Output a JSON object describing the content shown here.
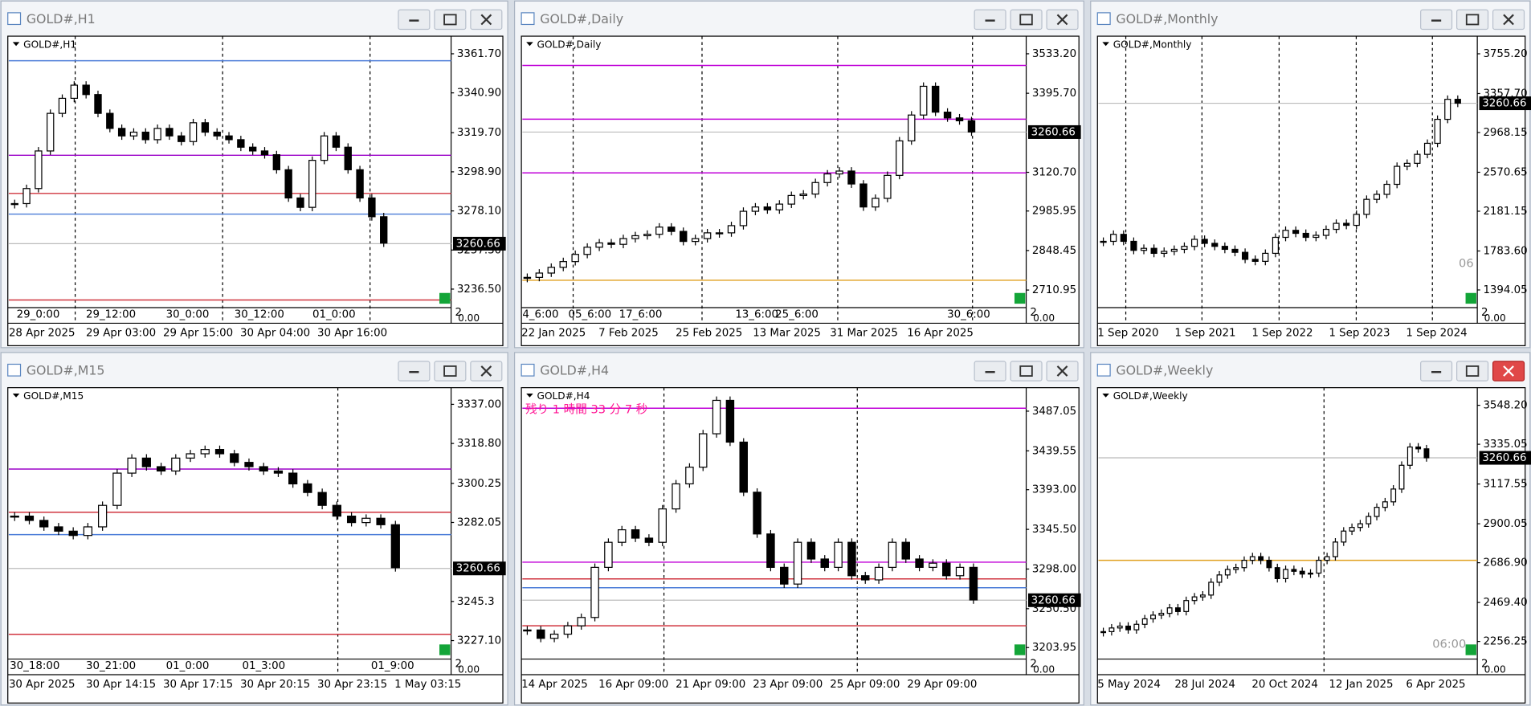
{
  "windows": [
    {
      "title": "GOLD#,H1",
      "active": false
    },
    {
      "title": "GOLD#,Daily",
      "active": false
    },
    {
      "title": "GOLD#,Monthly",
      "active": false
    },
    {
      "title": "GOLD#,M15",
      "active": false
    },
    {
      "title": "GOLD#,H4",
      "active": false
    },
    {
      "title": "GOLD#,Weekly",
      "active": true
    }
  ],
  "chart_data": [
    {
      "type": "candlestick",
      "title": "GOLD#,H1",
      "ylim": [
        3227.7,
        3369.5
      ],
      "yticks": [
        {
          "value": 3361.7,
          "label": "3361.70"
        },
        {
          "value": 3340.9,
          "label": "3340.90"
        },
        {
          "value": 3319.7,
          "label": "3319.70"
        },
        {
          "value": 3298.9,
          "label": "3298.90"
        },
        {
          "value": 3278.1,
          "label": "3278.10"
        },
        {
          "value": 3257.3,
          "label": "3257.30"
        },
        {
          "value": 3236.5,
          "label": "3236.50"
        }
      ],
      "price": 3260.66,
      "levels": [
        {
          "value": 3358,
          "color": "#4a7bd8"
        },
        {
          "value": 3307.7,
          "color": "#9b00c8"
        },
        {
          "value": 3287.4,
          "color": "#d0343f"
        },
        {
          "value": 3276.4,
          "color": "#4a7bd8"
        },
        {
          "value": 3230.7,
          "color": "#d0343f"
        }
      ],
      "values": [
        3282,
        3290,
        3310,
        3330,
        3338,
        3345,
        3340,
        3330,
        3322,
        3318,
        3320,
        3316,
        3322,
        3318,
        3315,
        3325,
        3320,
        3318,
        3316,
        3312,
        3310,
        3308,
        3300,
        3285,
        3280,
        3305,
        3318,
        3312,
        3300,
        3285,
        3275,
        3261
      ],
      "separator_labels": [
        "29_0:00",
        "29_12:00",
        "30_0:00",
        "30_12:00",
        "01_0:00"
      ],
      "x_labels": [
        "28 Apr 2025",
        "29 Apr 03:00",
        "29 Apr 15:00",
        "30 Apr 04:00",
        "30 Apr 16:00"
      ],
      "sub_labels": [
        "2",
        "0.00"
      ]
    },
    {
      "type": "candlestick",
      "title": "GOLD#,Daily",
      "ylim": [
        2656.6,
        3584.2
      ],
      "yticks": [
        {
          "value": 3533.2,
          "label": "3533.20"
        },
        {
          "value": 3395.7,
          "label": "3395.70"
        },
        {
          "value": 3120.7,
          "label": "3120.70"
        },
        2985.95,
        2848.45,
        2710.95
      ],
      "price": 3260.66,
      "levels": [
        {
          "value": 3492.4,
          "color": "#c000d8"
        },
        {
          "value": 3305.5,
          "color": "#c000d8"
        },
        {
          "value": 3118.6,
          "color": "#c000d8"
        },
        {
          "value": 2745,
          "color": "#e0a020"
        }
      ],
      "values": [
        2755,
        2770,
        2790,
        2810,
        2835,
        2860,
        2875,
        2870,
        2890,
        2900,
        2905,
        2930,
        2915,
        2880,
        2890,
        2910,
        2910,
        2935,
        2985,
        3000,
        2990,
        3010,
        3040,
        3045,
        3085,
        3115,
        3125,
        3080,
        3000,
        3030,
        3110,
        3230,
        3320,
        3420,
        3330,
        3310,
        3300,
        3261
      ],
      "separator_labels": [
        "4_6:00",
        "05_6:00",
        "17_6:00",
        "13_6:00",
        "25_6:00",
        "30_6:00"
      ],
      "x_labels": [
        "22 Jan 2025",
        "7 Feb 2025",
        "25 Feb 2025",
        "13 Mar 2025",
        "31 Mar 2025",
        "16 Apr 2025"
      ],
      "sub_labels": [
        "2",
        "0.00"
      ]
    },
    {
      "type": "candlestick",
      "title": "GOLD#,Monthly",
      "ylim": [
        1237,
        3902
      ],
      "yticks": [
        {
          "value": 3755.2,
          "label": "3755.20"
        },
        {
          "value": 3357.7,
          "label": "3357.70"
        },
        2968.15,
        2570.65,
        2181.15,
        {
          "value": 1783.6,
          "label": "1783.60"
        },
        1394.05
      ],
      "price": 3260.66,
      "levels": [],
      "values": [
        1880,
        1950,
        1880,
        1790,
        1810,
        1760,
        1780,
        1800,
        1830,
        1900,
        1860,
        1830,
        1800,
        1770,
        1700,
        1680,
        1760,
        1920,
        1990,
        1960,
        1920,
        1940,
        2000,
        2060,
        2040,
        2150,
        2300,
        2350,
        2450,
        2630,
        2660,
        2750,
        2860,
        3100,
        3300,
        3261
      ],
      "separator_labels": [],
      "x_labels": [
        "1 Sep 2020",
        "1 Sep 2021",
        "1 Sep 2022",
        "1 Sep 2023",
        "1 Sep 2024"
      ],
      "note": "06",
      "sub_labels": [
        "2",
        "0.00"
      ]
    },
    {
      "type": "candlestick",
      "title": "GOLD#,M15",
      "ylim": [
        3219.4,
        3343.4
      ],
      "yticks": [
        {
          "value": 3337,
          "label": "3337.00"
        },
        {
          "value": 3318.8,
          "label": "3318.80"
        },
        3300.25,
        3282.05,
        3245.3,
        {
          "value": 3227.1,
          "label": "3227.10"
        }
      ],
      "price": 3260.66,
      "levels": [
        {
          "value": 3306.9,
          "color": "#9b00c8"
        },
        {
          "value": 3286.8,
          "color": "#d0343f"
        },
        {
          "value": 3276.4,
          "color": "#4a7bd8"
        },
        {
          "value": 3230,
          "color": "#d0343f"
        }
      ],
      "values": [
        3285,
        3283,
        3280,
        3278,
        3276,
        3280,
        3290,
        3305,
        3312,
        3308,
        3306,
        3312,
        3314,
        3316,
        3314,
        3310,
        3308,
        3306,
        3305,
        3300,
        3296,
        3290,
        3285,
        3282,
        3284,
        3281,
        3261
      ],
      "separator_labels": [
        "30_18:00",
        "30_21:00",
        "01_0:00",
        "01_3:00",
        "01_9:00"
      ],
      "x_labels": [
        "30 Apr 2025",
        "30 Apr 14:15",
        "30 Apr 17:15",
        "30 Apr 20:15",
        "30 Apr 23:15",
        "1 May 03:15"
      ],
      "sub_labels": [
        "2",
        "0.00"
      ]
    },
    {
      "type": "candlestick",
      "title": "GOLD#,H4",
      "ylim": [
        3192.5,
        3511.7
      ],
      "yticks": [
        3487.05,
        3439.55,
        {
          "value": 3393,
          "label": "3393.00"
        },
        {
          "value": 3345.5,
          "label": "3345.50"
        },
        {
          "value": 3298,
          "label": "3298.00"
        },
        {
          "value": 3250.5,
          "label": "3250.50"
        },
        3203.95
      ],
      "price": 3260.66,
      "levels": [
        {
          "value": 3490.6,
          "color": "#c000d8"
        },
        {
          "value": 3306.2,
          "color": "#c000d8"
        },
        {
          "value": 3286.2,
          "color": "#d0343f"
        },
        {
          "value": 3275.6,
          "color": "#4a7bd8"
        },
        {
          "value": 3230,
          "color": "#d0343f"
        }
      ],
      "values": [
        3225,
        3215,
        3220,
        3230,
        3240,
        3300,
        3330,
        3345,
        3335,
        3330,
        3370,
        3400,
        3420,
        3460,
        3500,
        3450,
        3390,
        3340,
        3300,
        3280,
        3330,
        3310,
        3300,
        3330,
        3290,
        3285,
        3300,
        3330,
        3310,
        3300,
        3305,
        3290,
        3300,
        3261
      ],
      "separator_labels": [],
      "x_labels": [
        "14 Apr 2025",
        "16 Apr 09:00",
        "21 Apr 09:00",
        "23 Apr 09:00",
        "25 Apr 09:00",
        "29 Apr 09:00"
      ],
      "note": "残り 1 時間 33 分 7 秒",
      "sub_labels": [
        "2",
        "0.00"
      ]
    },
    {
      "type": "candlestick",
      "title": "GOLD#,Weekly",
      "ylim": [
        2170.4,
        3628.6
      ],
      "yticks": [
        {
          "value": 3548.2,
          "label": "3548.20"
        },
        3335.05,
        3117.55,
        2900.05,
        {
          "value": 2686.9,
          "label": "2686.90"
        },
        {
          "value": 2469.4,
          "label": "2469.40"
        },
        2256.25
      ],
      "price": 3260.66,
      "levels": [
        {
          "value": 2700,
          "color": "#e0a020"
        }
      ],
      "values": [
        2310,
        2330,
        2340,
        2320,
        2350,
        2380,
        2400,
        2410,
        2440,
        2420,
        2480,
        2500,
        2510,
        2580,
        2620,
        2650,
        2660,
        2700,
        2720,
        2700,
        2660,
        2600,
        2650,
        2640,
        2625,
        2630,
        2700,
        2720,
        2800,
        2860,
        2880,
        2900,
        2940,
        2990,
        3020,
        3090,
        3220,
        3320,
        3310,
        3261
      ],
      "separator_labels": [],
      "x_labels": [
        "5 May 2024",
        "28 Jul 2024",
        "20 Oct 2024",
        "12 Jan 2025",
        "6 Apr 2025"
      ],
      "note": "06:00",
      "sub_labels": [
        "2",
        "0.00"
      ]
    }
  ]
}
